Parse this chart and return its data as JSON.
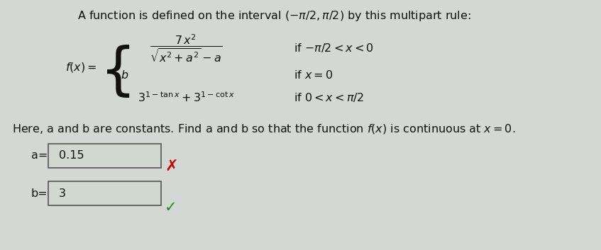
{
  "bg_color": "#d4d8d4",
  "title_text": "A function is defined on the interval $(-\\pi/2,\\pi/2)$ by this multipart rule:",
  "line1_expr": "$\\dfrac{7\\,x^2}{\\sqrt{x^2+a^2} - a}$",
  "line1_cond": "if $-\\pi/2 < x < 0$",
  "line2_expr": "$b$",
  "line2_cond": "if $x=0$",
  "line3_expr": "$3^{1-\\tan x} + 3^{1-\\cot x}$",
  "line3_cond": "if $0< x < \\pi/2$",
  "desc_text": "Here, a and b are constants. Find a and b so that the function $f(x)$ is continuous at $x=0$.",
  "a_label": "a=",
  "a_value": "0.15",
  "b_label": "b=",
  "b_value": "3",
  "x_mark_color": "#cc0000",
  "check_color": "#228B22",
  "text_color": "#111111",
  "box_face": "#d0d8d0",
  "box_edge": "#555555"
}
